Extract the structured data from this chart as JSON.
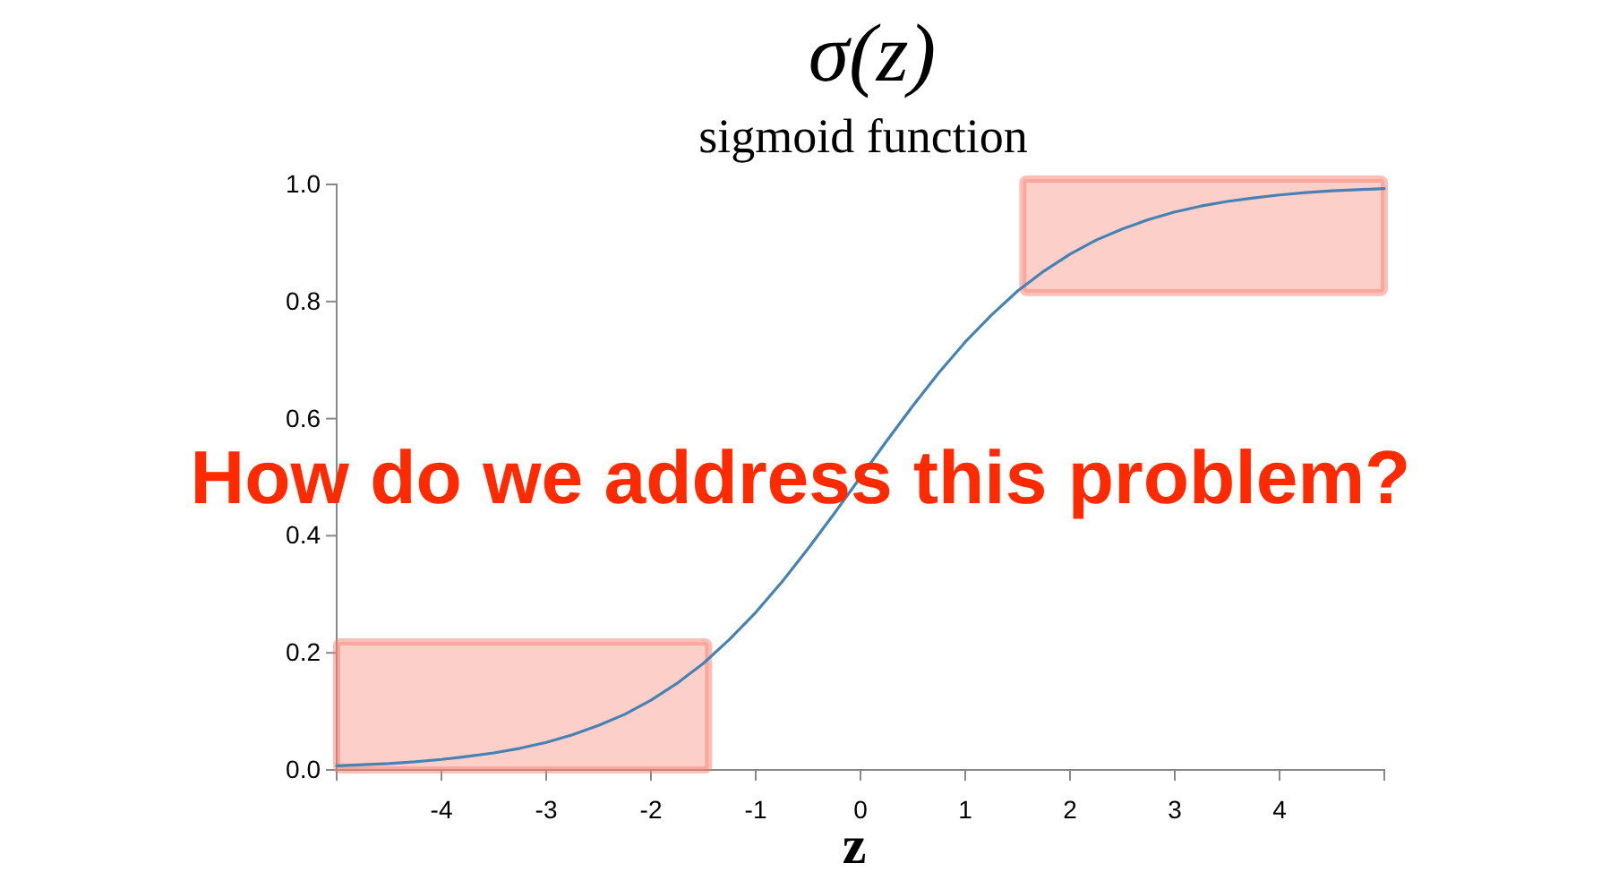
{
  "chart_data": {
    "type": "line",
    "title": "σ(z)",
    "subtitle": "sigmoid function",
    "xlabel": "z",
    "annotations": [
      "How do we address this problem?"
    ],
    "x": [
      -5,
      -4.75,
      -4.5,
      -4.25,
      -4,
      -3.75,
      -3.5,
      -3.25,
      -3,
      -2.75,
      -2.5,
      -2.25,
      -2,
      -1.75,
      -1.5,
      -1.25,
      -1,
      -0.75,
      -0.5,
      -0.25,
      0,
      0.25,
      0.5,
      0.75,
      1,
      1.25,
      1.5,
      1.75,
      2,
      2.25,
      2.5,
      2.75,
      3,
      3.25,
      3.5,
      3.75,
      4,
      4.25,
      4.5,
      4.75,
      5
    ],
    "series": [
      {
        "color": "#4682b4",
        "values": [
          0.007,
          0.009,
          0.011,
          0.014,
          0.018,
          0.023,
          0.029,
          0.037,
          0.047,
          0.06,
          0.076,
          0.095,
          0.119,
          0.148,
          0.182,
          0.223,
          0.269,
          0.321,
          0.378,
          0.438,
          0.5,
          0.562,
          0.622,
          0.679,
          0.731,
          0.777,
          0.818,
          0.852,
          0.881,
          0.905,
          0.924,
          0.94,
          0.953,
          0.963,
          0.971,
          0.977,
          0.982,
          0.986,
          0.989,
          0.991,
          0.993
        ]
      }
    ],
    "xlim": [
      -5,
      5
    ],
    "xticks": [
      -4,
      -3,
      -2,
      -1,
      0,
      1,
      2,
      3,
      4
    ],
    "ylim": [
      0,
      1
    ],
    "yticks": [
      {
        "value": 0,
        "label": "0.0"
      },
      {
        "value": 0.2,
        "label": "0.2"
      },
      {
        "value": 0.4,
        "label": "0.4"
      },
      {
        "value": 0.6,
        "label": "0.6"
      },
      {
        "value": 0.8,
        "label": "0.8"
      },
      {
        "value": 1,
        "label": "1.0"
      }
    ],
    "bands": [
      {
        "axis": "x",
        "from": -5,
        "to": -1.45,
        "color": "#fa8072"
      },
      {
        "axis": "x",
        "from": 1.55,
        "to": 5,
        "color": "#fa8072"
      }
    ]
  }
}
